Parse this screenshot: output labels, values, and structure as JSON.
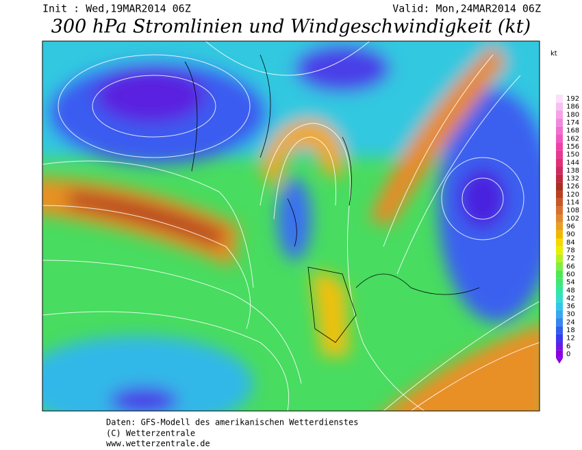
{
  "header": {
    "init": "Init : Wed,19MAR2014 06Z",
    "valid": "Valid: Mon,24MAR2014 06Z",
    "title": "300 hPa Stromlinien und Windgeschwindigkeit (kt)"
  },
  "legend": {
    "unit": "kt",
    "levels": [
      {
        "value": 0,
        "color": "#8a00e0"
      },
      {
        "value": 6,
        "color": "#6a1ae8"
      },
      {
        "value": 12,
        "color": "#3a3af0"
      },
      {
        "value": 18,
        "color": "#2f5fef"
      },
      {
        "value": 24,
        "color": "#3a86f0"
      },
      {
        "value": 30,
        "color": "#3aa8f0"
      },
      {
        "value": 36,
        "color": "#30c8e8"
      },
      {
        "value": 42,
        "color": "#30e0c8"
      },
      {
        "value": 48,
        "color": "#30e8a0"
      },
      {
        "value": 54,
        "color": "#40e870"
      },
      {
        "value": 60,
        "color": "#50e850"
      },
      {
        "value": 66,
        "color": "#80ee40"
      },
      {
        "value": 72,
        "color": "#b8f020"
      },
      {
        "value": 78,
        "color": "#e8f000"
      },
      {
        "value": 84,
        "color": "#f8d800"
      },
      {
        "value": 90,
        "color": "#f0b800"
      },
      {
        "value": 96,
        "color": "#e8a020"
      },
      {
        "value": 102,
        "color": "#e08830"
      },
      {
        "value": 108,
        "color": "#d87030"
      },
      {
        "value": 114,
        "color": "#c85828"
      },
      {
        "value": 120,
        "color": "#b84020"
      },
      {
        "value": 126,
        "color": "#a83020"
      },
      {
        "value": 132,
        "color": "#c02840"
      },
      {
        "value": 138,
        "color": "#d02860"
      },
      {
        "value": 144,
        "color": "#e03078"
      },
      {
        "value": 150,
        "color": "#e83890"
      },
      {
        "value": 156,
        "color": "#f040a8"
      },
      {
        "value": 162,
        "color": "#f058c0"
      },
      {
        "value": 168,
        "color": "#f070d0"
      },
      {
        "value": 174,
        "color": "#f088e0"
      },
      {
        "value": 180,
        "color": "#f8a0e8"
      },
      {
        "value": 186,
        "color": "#f8c0f0"
      },
      {
        "value": 192,
        "color": "#fce0f8"
      }
    ]
  },
  "footer": {
    "source": "Daten: GFS-Modell des amerikanischen Wetterdienstes",
    "copyright": "(C) Wetterzentrale",
    "url": "www.wetterzentrale.de"
  }
}
